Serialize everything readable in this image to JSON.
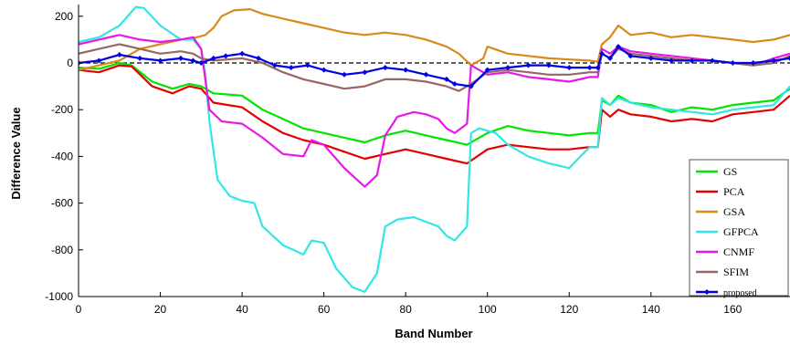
{
  "chart_data": {
    "type": "line",
    "title": "",
    "xlabel": "Band Number",
    "ylabel": "Difference Value",
    "xlim": [
      0,
      174
    ],
    "ylim": [
      -1000,
      250
    ],
    "xticks": [
      0,
      20,
      40,
      60,
      80,
      100,
      120,
      140,
      160
    ],
    "yticks": [
      200,
      0,
      -200,
      -400,
      -600,
      -800,
      -1000
    ],
    "grid": false,
    "legend_position": "bottom-right",
    "reference_line": {
      "y": 0,
      "style": "dashed",
      "color": "#000000"
    },
    "series": [
      {
        "name": "GS",
        "color": "#00e600",
        "marker": "none",
        "points": [
          [
            0,
            -20
          ],
          [
            5,
            -25
          ],
          [
            10,
            0
          ],
          [
            13,
            -10
          ],
          [
            18,
            -80
          ],
          [
            23,
            -110
          ],
          [
            27,
            -90
          ],
          [
            30,
            -100
          ],
          [
            33,
            -130
          ],
          [
            40,
            -140
          ],
          [
            45,
            -200
          ],
          [
            50,
            -240
          ],
          [
            55,
            -280
          ],
          [
            60,
            -300
          ],
          [
            65,
            -320
          ],
          [
            70,
            -340
          ],
          [
            75,
            -310
          ],
          [
            80,
            -290
          ],
          [
            85,
            -310
          ],
          [
            90,
            -330
          ],
          [
            95,
            -350
          ],
          [
            100,
            -300
          ],
          [
            105,
            -270
          ],
          [
            110,
            -290
          ],
          [
            115,
            -300
          ],
          [
            120,
            -310
          ],
          [
            125,
            -300
          ],
          [
            127,
            -300
          ],
          [
            128,
            -160
          ],
          [
            130,
            -180
          ],
          [
            132,
            -140
          ],
          [
            135,
            -170
          ],
          [
            140,
            -180
          ],
          [
            145,
            -210
          ],
          [
            150,
            -190
          ],
          [
            155,
            -200
          ],
          [
            160,
            -180
          ],
          [
            165,
            -170
          ],
          [
            170,
            -160
          ],
          [
            174,
            -110
          ]
        ]
      },
      {
        "name": "PCA",
        "color": "#e60000",
        "marker": "none",
        "points": [
          [
            0,
            -30
          ],
          [
            5,
            -40
          ],
          [
            10,
            -10
          ],
          [
            13,
            -15
          ],
          [
            18,
            -100
          ],
          [
            23,
            -130
          ],
          [
            27,
            -100
          ],
          [
            30,
            -110
          ],
          [
            33,
            -170
          ],
          [
            40,
            -190
          ],
          [
            45,
            -250
          ],
          [
            50,
            -300
          ],
          [
            55,
            -330
          ],
          [
            60,
            -350
          ],
          [
            65,
            -380
          ],
          [
            70,
            -410
          ],
          [
            75,
            -390
          ],
          [
            80,
            -370
          ],
          [
            85,
            -390
          ],
          [
            90,
            -410
          ],
          [
            95,
            -430
          ],
          [
            100,
            -370
          ],
          [
            105,
            -350
          ],
          [
            110,
            -360
          ],
          [
            115,
            -370
          ],
          [
            120,
            -370
          ],
          [
            125,
            -360
          ],
          [
            127,
            -360
          ],
          [
            128,
            -200
          ],
          [
            130,
            -230
          ],
          [
            132,
            -200
          ],
          [
            135,
            -220
          ],
          [
            140,
            -230
          ],
          [
            145,
            -250
          ],
          [
            150,
            -240
          ],
          [
            155,
            -250
          ],
          [
            160,
            -220
          ],
          [
            165,
            -210
          ],
          [
            170,
            -200
          ],
          [
            174,
            -140
          ]
        ]
      },
      {
        "name": "GSA",
        "color": "#d98a1a",
        "marker": "none",
        "points": [
          [
            0,
            -30
          ],
          [
            5,
            -10
          ],
          [
            10,
            10
          ],
          [
            15,
            60
          ],
          [
            20,
            80
          ],
          [
            25,
            100
          ],
          [
            29,
            110
          ],
          [
            31,
            120
          ],
          [
            33,
            150
          ],
          [
            35,
            200
          ],
          [
            38,
            225
          ],
          [
            42,
            230
          ],
          [
            45,
            210
          ],
          [
            50,
            190
          ],
          [
            55,
            170
          ],
          [
            60,
            150
          ],
          [
            65,
            130
          ],
          [
            70,
            120
          ],
          [
            75,
            130
          ],
          [
            80,
            120
          ],
          [
            85,
            100
          ],
          [
            90,
            70
          ],
          [
            93,
            40
          ],
          [
            96,
            -10
          ],
          [
            99,
            20
          ],
          [
            100,
            70
          ],
          [
            105,
            40
          ],
          [
            110,
            30
          ],
          [
            115,
            20
          ],
          [
            120,
            15
          ],
          [
            125,
            10
          ],
          [
            127,
            5
          ],
          [
            128,
            80
          ],
          [
            130,
            110
          ],
          [
            132,
            160
          ],
          [
            135,
            120
          ],
          [
            140,
            130
          ],
          [
            145,
            110
          ],
          [
            150,
            120
          ],
          [
            155,
            110
          ],
          [
            160,
            100
          ],
          [
            165,
            90
          ],
          [
            170,
            100
          ],
          [
            174,
            120
          ]
        ]
      },
      {
        "name": "GFPCA",
        "color": "#33e6e6",
        "marker": "none",
        "points": [
          [
            0,
            90
          ],
          [
            5,
            110
          ],
          [
            10,
            160
          ],
          [
            14,
            240
          ],
          [
            16,
            235
          ],
          [
            20,
            160
          ],
          [
            25,
            100
          ],
          [
            28,
            100
          ],
          [
            30,
            60
          ],
          [
            31,
            -50
          ],
          [
            32,
            -250
          ],
          [
            34,
            -500
          ],
          [
            37,
            -570
          ],
          [
            40,
            -590
          ],
          [
            43,
            -600
          ],
          [
            45,
            -700
          ],
          [
            50,
            -780
          ],
          [
            55,
            -820
          ],
          [
            57,
            -760
          ],
          [
            60,
            -770
          ],
          [
            63,
            -880
          ],
          [
            67,
            -960
          ],
          [
            70,
            -980
          ],
          [
            73,
            -900
          ],
          [
            75,
            -700
          ],
          [
            78,
            -670
          ],
          [
            82,
            -660
          ],
          [
            85,
            -680
          ],
          [
            88,
            -700
          ],
          [
            90,
            -740
          ],
          [
            92,
            -760
          ],
          [
            95,
            -700
          ],
          [
            96,
            -300
          ],
          [
            98,
            -280
          ],
          [
            102,
            -300
          ],
          [
            105,
            -350
          ],
          [
            110,
            -400
          ],
          [
            115,
            -430
          ],
          [
            120,
            -450
          ],
          [
            125,
            -360
          ],
          [
            127,
            -360
          ],
          [
            128,
            -150
          ],
          [
            130,
            -180
          ],
          [
            132,
            -150
          ],
          [
            135,
            -170
          ],
          [
            140,
            -190
          ],
          [
            145,
            -200
          ],
          [
            150,
            -210
          ],
          [
            155,
            -220
          ],
          [
            160,
            -200
          ],
          [
            165,
            -190
          ],
          [
            170,
            -180
          ],
          [
            174,
            -100
          ]
        ]
      },
      {
        "name": "CNMF",
        "color": "#e619e6",
        "marker": "none",
        "points": [
          [
            0,
            80
          ],
          [
            5,
            100
          ],
          [
            10,
            120
          ],
          [
            15,
            100
          ],
          [
            20,
            90
          ],
          [
            25,
            100
          ],
          [
            28,
            110
          ],
          [
            30,
            60
          ],
          [
            32,
            -200
          ],
          [
            35,
            -250
          ],
          [
            40,
            -260
          ],
          [
            45,
            -320
          ],
          [
            50,
            -390
          ],
          [
            55,
            -400
          ],
          [
            57,
            -330
          ],
          [
            60,
            -350
          ],
          [
            65,
            -450
          ],
          [
            70,
            -530
          ],
          [
            73,
            -480
          ],
          [
            75,
            -310
          ],
          [
            78,
            -230
          ],
          [
            82,
            -210
          ],
          [
            85,
            -220
          ],
          [
            88,
            -240
          ],
          [
            90,
            -280
          ],
          [
            92,
            -300
          ],
          [
            95,
            -260
          ],
          [
            96,
            -10
          ],
          [
            100,
            -50
          ],
          [
            105,
            -40
          ],
          [
            110,
            -60
          ],
          [
            115,
            -70
          ],
          [
            120,
            -80
          ],
          [
            125,
            -60
          ],
          [
            127,
            -60
          ],
          [
            128,
            60
          ],
          [
            130,
            40
          ],
          [
            132,
            70
          ],
          [
            135,
            50
          ],
          [
            140,
            40
          ],
          [
            145,
            30
          ],
          [
            150,
            20
          ],
          [
            155,
            10
          ],
          [
            160,
            0
          ],
          [
            165,
            -10
          ],
          [
            170,
            20
          ],
          [
            174,
            40
          ]
        ]
      },
      {
        "name": "SFIM",
        "color": "#996666",
        "marker": "none",
        "points": [
          [
            0,
            40
          ],
          [
            5,
            60
          ],
          [
            10,
            80
          ],
          [
            15,
            60
          ],
          [
            20,
            40
          ],
          [
            25,
            50
          ],
          [
            28,
            40
          ],
          [
            30,
            20
          ],
          [
            33,
            10
          ],
          [
            40,
            20
          ],
          [
            45,
            0
          ],
          [
            50,
            -40
          ],
          [
            55,
            -70
          ],
          [
            60,
            -90
          ],
          [
            65,
            -110
          ],
          [
            70,
            -100
          ],
          [
            75,
            -70
          ],
          [
            80,
            -70
          ],
          [
            85,
            -80
          ],
          [
            90,
            -100
          ],
          [
            93,
            -120
          ],
          [
            96,
            -90
          ],
          [
            100,
            -40
          ],
          [
            105,
            -30
          ],
          [
            110,
            -40
          ],
          [
            115,
            -50
          ],
          [
            120,
            -50
          ],
          [
            125,
            -40
          ],
          [
            127,
            -40
          ],
          [
            128,
            40
          ],
          [
            130,
            20
          ],
          [
            132,
            60
          ],
          [
            135,
            40
          ],
          [
            140,
            30
          ],
          [
            145,
            20
          ],
          [
            150,
            10
          ],
          [
            155,
            10
          ],
          [
            160,
            0
          ],
          [
            165,
            -10
          ],
          [
            170,
            0
          ],
          [
            174,
            30
          ]
        ]
      },
      {
        "name": "proposed",
        "color": "#0000e6",
        "marker": "diamond",
        "points": [
          [
            0,
            0
          ],
          [
            5,
            10
          ],
          [
            10,
            35
          ],
          [
            15,
            20
          ],
          [
            20,
            10
          ],
          [
            25,
            20
          ],
          [
            28,
            10
          ],
          [
            30,
            0
          ],
          [
            33,
            20
          ],
          [
            36,
            30
          ],
          [
            40,
            40
          ],
          [
            44,
            20
          ],
          [
            48,
            -10
          ],
          [
            52,
            -20
          ],
          [
            56,
            -10
          ],
          [
            60,
            -30
          ],
          [
            65,
            -50
          ],
          [
            70,
            -40
          ],
          [
            75,
            -20
          ],
          [
            80,
            -30
          ],
          [
            85,
            -50
          ],
          [
            90,
            -70
          ],
          [
            92,
            -90
          ],
          [
            96,
            -100
          ],
          [
            100,
            -30
          ],
          [
            105,
            -20
          ],
          [
            110,
            -10
          ],
          [
            115,
            -10
          ],
          [
            120,
            -20
          ],
          [
            125,
            -20
          ],
          [
            127,
            -20
          ],
          [
            128,
            40
          ],
          [
            130,
            20
          ],
          [
            132,
            70
          ],
          [
            135,
            30
          ],
          [
            140,
            20
          ],
          [
            145,
            10
          ],
          [
            150,
            10
          ],
          [
            155,
            10
          ],
          [
            160,
            0
          ],
          [
            165,
            0
          ],
          [
            170,
            10
          ],
          [
            174,
            20
          ]
        ]
      }
    ]
  }
}
